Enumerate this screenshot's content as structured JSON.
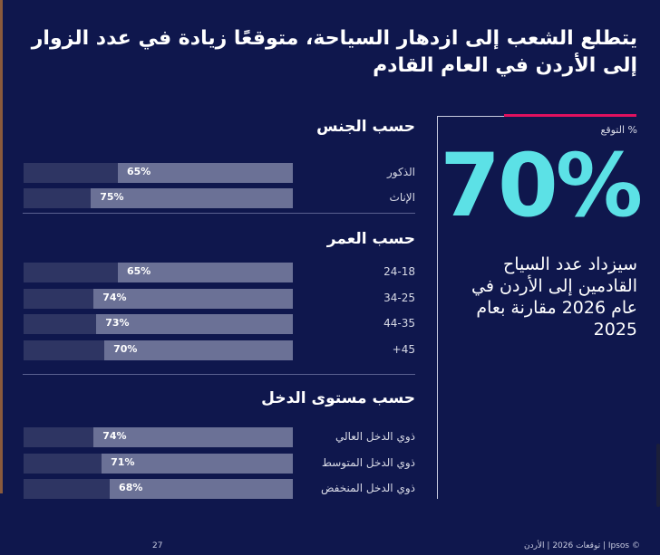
{
  "title": "يتطلع الشعب إلى ازدهار السياحة، متوقعًا زيادة في عدد الزوار إلى الأردن في العام القادم",
  "chart_data": {
    "type": "bar",
    "sections": [
      {
        "title": "حسب الجنس",
        "categories": [
          "الذكور",
          "الإناث"
        ],
        "values": [
          65,
          75
        ],
        "labels": [
          "65%",
          "75%"
        ]
      },
      {
        "title": "حسب العمر",
        "categories": [
          "24-18",
          "34-25",
          "44-35",
          "45+"
        ],
        "values": [
          65,
          74,
          73,
          70
        ],
        "labels": [
          "65%",
          "74%",
          "73%",
          "70%"
        ]
      },
      {
        "title": "حسب مستوى الدخل",
        "categories": [
          "ذوي الدخل العالي",
          "ذوي الدخل المتوسط",
          "ذوي الدخل المنخفض"
        ],
        "values": [
          74,
          71,
          68
        ],
        "labels": [
          "74%",
          "71%",
          "68%"
        ]
      }
    ],
    "ylim": [
      0,
      100
    ]
  },
  "kpi": {
    "label": "% التوقع",
    "value": "70%",
    "description": "سيزداد عدد السياح القادمين إلى الأردن في عام 2026 مقارنة بعام 2025"
  },
  "footer": {
    "page": "27",
    "source": "© Ipsos | توقعات 2026 | الأردن"
  },
  "colors": {
    "background": "#0f174d",
    "accent": "#5ce1e6",
    "red": "#e0115f",
    "bar_fill": "#6b7196",
    "bar_track": "#2e3563"
  }
}
